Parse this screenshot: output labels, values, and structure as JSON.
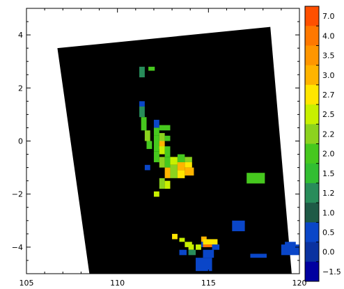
{
  "chart_data": {
    "type": "heatmap",
    "title": "",
    "xlabel": "",
    "ylabel": "",
    "xlim": [
      105,
      120
    ],
    "ylim": [
      -5,
      5
    ],
    "x_ticks": [
      105,
      110,
      115,
      120
    ],
    "x_tick_labels": [
      "105",
      "110",
      "115",
      "120"
    ],
    "y_ticks": [
      -4,
      -2,
      0,
      2,
      4
    ],
    "y_tick_labels": [
      "−4",
      "−2",
      "0",
      "2",
      "4"
    ],
    "background_color": "#000000",
    "swath_polygon": [
      [
        106.7,
        3.5
      ],
      [
        118.4,
        4.3
      ],
      [
        119.6,
        -5.2
      ],
      [
        108.5,
        -5.2
      ]
    ],
    "colorbar": {
      "levels": [
        "7.0",
        "4.0",
        "3.5",
        "3.0",
        "2.7",
        "2.5",
        "2.2",
        "2.0",
        "1.5",
        "1.2",
        "1.0",
        "0.5",
        "0.0",
        "−1.5"
      ],
      "colors": [
        "#ff5000",
        "#ff7800",
        "#ff9600",
        "#ffb400",
        "#ffe600",
        "#c8f000",
        "#8cd21e",
        "#46c81e",
        "#32be32",
        "#288c5a",
        "#1e5a46",
        "#0a46c8",
        "#0a32a0",
        "#0000a0"
      ]
    },
    "cells": [
      {
        "x": 111.2,
        "y": 2.4,
        "w": 0.3,
        "h": 0.4,
        "color": "#288c5a"
      },
      {
        "x": 111.7,
        "y": 2.65,
        "w": 0.35,
        "h": 0.15,
        "color": "#46c81e"
      },
      {
        "x": 111.2,
        "y": 1.3,
        "w": 0.3,
        "h": 0.2,
        "color": "#0a46c8"
      },
      {
        "x": 111.2,
        "y": 0.9,
        "w": 0.3,
        "h": 0.4,
        "color": "#288c5a"
      },
      {
        "x": 111.3,
        "y": 0.4,
        "w": 0.3,
        "h": 0.5,
        "color": "#46c81e"
      },
      {
        "x": 111.5,
        "y": 0.0,
        "w": 0.3,
        "h": 0.4,
        "color": "#8cd21e"
      },
      {
        "x": 111.6,
        "y": -0.3,
        "w": 0.3,
        "h": 0.3,
        "color": "#46c81e"
      },
      {
        "x": 112.0,
        "y": 0.5,
        "w": 0.3,
        "h": 0.3,
        "color": "#0a46c8"
      },
      {
        "x": 112.0,
        "y": 0.2,
        "w": 0.3,
        "h": 0.3,
        "color": "#46c81e"
      },
      {
        "x": 112.0,
        "y": -0.4,
        "w": 0.3,
        "h": 0.6,
        "color": "#46c81e"
      },
      {
        "x": 112.3,
        "y": 0.4,
        "w": 0.6,
        "h": 0.2,
        "color": "#46c81e"
      },
      {
        "x": 112.3,
        "y": 0.0,
        "w": 0.3,
        "h": 0.3,
        "color": "#8cd21e"
      },
      {
        "x": 112.6,
        "y": 0.0,
        "w": 0.3,
        "h": 0.2,
        "color": "#46c81e"
      },
      {
        "x": 112.3,
        "y": -0.3,
        "w": 0.3,
        "h": 0.3,
        "color": "#ffb400"
      },
      {
        "x": 112.0,
        "y": -0.8,
        "w": 0.3,
        "h": 0.4,
        "color": "#46c81e"
      },
      {
        "x": 112.3,
        "y": -0.5,
        "w": 0.3,
        "h": 0.3,
        "color": "#c8f000"
      },
      {
        "x": 112.6,
        "y": -0.6,
        "w": 0.3,
        "h": 0.4,
        "color": "#46c81e"
      },
      {
        "x": 111.5,
        "y": -1.1,
        "w": 0.3,
        "h": 0.2,
        "color": "#0a46c8"
      },
      {
        "x": 112.3,
        "y": -1.0,
        "w": 0.3,
        "h": 0.4,
        "color": "#8cd21e"
      },
      {
        "x": 112.6,
        "y": -1.0,
        "w": 0.3,
        "h": 0.4,
        "color": "#46c81e"
      },
      {
        "x": 112.9,
        "y": -0.9,
        "w": 0.4,
        "h": 0.3,
        "color": "#c8f000"
      },
      {
        "x": 113.3,
        "y": -0.8,
        "w": 0.4,
        "h": 0.3,
        "color": "#46c81e"
      },
      {
        "x": 113.7,
        "y": -0.8,
        "w": 0.4,
        "h": 0.2,
        "color": "#8cd21e"
      },
      {
        "x": 112.9,
        "y": -1.4,
        "w": 0.4,
        "h": 0.5,
        "color": "#8cd21e"
      },
      {
        "x": 113.3,
        "y": -1.1,
        "w": 0.4,
        "h": 0.3,
        "color": "#ffb400"
      },
      {
        "x": 113.7,
        "y": -1.0,
        "w": 0.4,
        "h": 0.2,
        "color": "#ffe600"
      },
      {
        "x": 113.3,
        "y": -1.4,
        "w": 0.4,
        "h": 0.3,
        "color": "#ffe600"
      },
      {
        "x": 113.7,
        "y": -1.3,
        "w": 0.5,
        "h": 0.3,
        "color": "#ffb400"
      },
      {
        "x": 112.6,
        "y": -1.4,
        "w": 0.3,
        "h": 0.4,
        "color": "#ffb400"
      },
      {
        "x": 112.3,
        "y": -1.8,
        "w": 0.3,
        "h": 0.4,
        "color": "#8cd21e"
      },
      {
        "x": 112.6,
        "y": -1.8,
        "w": 0.3,
        "h": 0.3,
        "color": "#c8f000"
      },
      {
        "x": 112.0,
        "y": -2.1,
        "w": 0.3,
        "h": 0.2,
        "color": "#c8f000"
      },
      {
        "x": 117.1,
        "y": -1.6,
        "w": 1.0,
        "h": 0.4,
        "color": "#46c81e"
      },
      {
        "x": 116.3,
        "y": -3.4,
        "w": 0.7,
        "h": 0.4,
        "color": "#0a46c8"
      },
      {
        "x": 113.0,
        "y": -3.7,
        "w": 0.3,
        "h": 0.2,
        "color": "#ffe600"
      },
      {
        "x": 113.4,
        "y": -3.8,
        "w": 0.3,
        "h": 0.15,
        "color": "#c8f000"
      },
      {
        "x": 113.7,
        "y": -4.0,
        "w": 0.4,
        "h": 0.2,
        "color": "#c8f000"
      },
      {
        "x": 113.4,
        "y": -4.3,
        "w": 0.4,
        "h": 0.2,
        "color": "#0a46c8"
      },
      {
        "x": 113.9,
        "y": -4.1,
        "w": 0.3,
        "h": 0.2,
        "color": "#c8f000"
      },
      {
        "x": 113.9,
        "y": -4.3,
        "w": 0.4,
        "h": 0.2,
        "color": "#288c5a"
      },
      {
        "x": 114.3,
        "y": -4.1,
        "w": 0.3,
        "h": 0.2,
        "color": "#c8f000"
      },
      {
        "x": 114.6,
        "y": -3.8,
        "w": 0.3,
        "h": 0.2,
        "color": "#ffb400"
      },
      {
        "x": 114.6,
        "y": -4.0,
        "w": 0.3,
        "h": 0.2,
        "color": "#0a46c8"
      },
      {
        "x": 114.7,
        "y": -3.9,
        "w": 0.8,
        "h": 0.2,
        "color": "#ffe600"
      },
      {
        "x": 114.7,
        "y": -4.0,
        "w": 0.9,
        "h": 0.1,
        "color": "#ff7800"
      },
      {
        "x": 115.2,
        "y": -4.1,
        "w": 0.4,
        "h": 0.2,
        "color": "#0a46c8"
      },
      {
        "x": 114.7,
        "y": -4.4,
        "w": 0.6,
        "h": 0.3,
        "color": "#0a46c8"
      },
      {
        "x": 114.3,
        "y": -4.9,
        "w": 0.9,
        "h": 0.5,
        "color": "#0a46c8"
      },
      {
        "x": 117.3,
        "y": -4.4,
        "w": 0.9,
        "h": 0.15,
        "color": "#0a46c8"
      },
      {
        "x": 119.0,
        "y": -4.3,
        "w": 1.0,
        "h": 0.4,
        "color": "#0a46c8"
      },
      {
        "x": 119.2,
        "y": -4.0,
        "w": 0.6,
        "h": 0.2,
        "color": "#0a46c8"
      }
    ]
  }
}
